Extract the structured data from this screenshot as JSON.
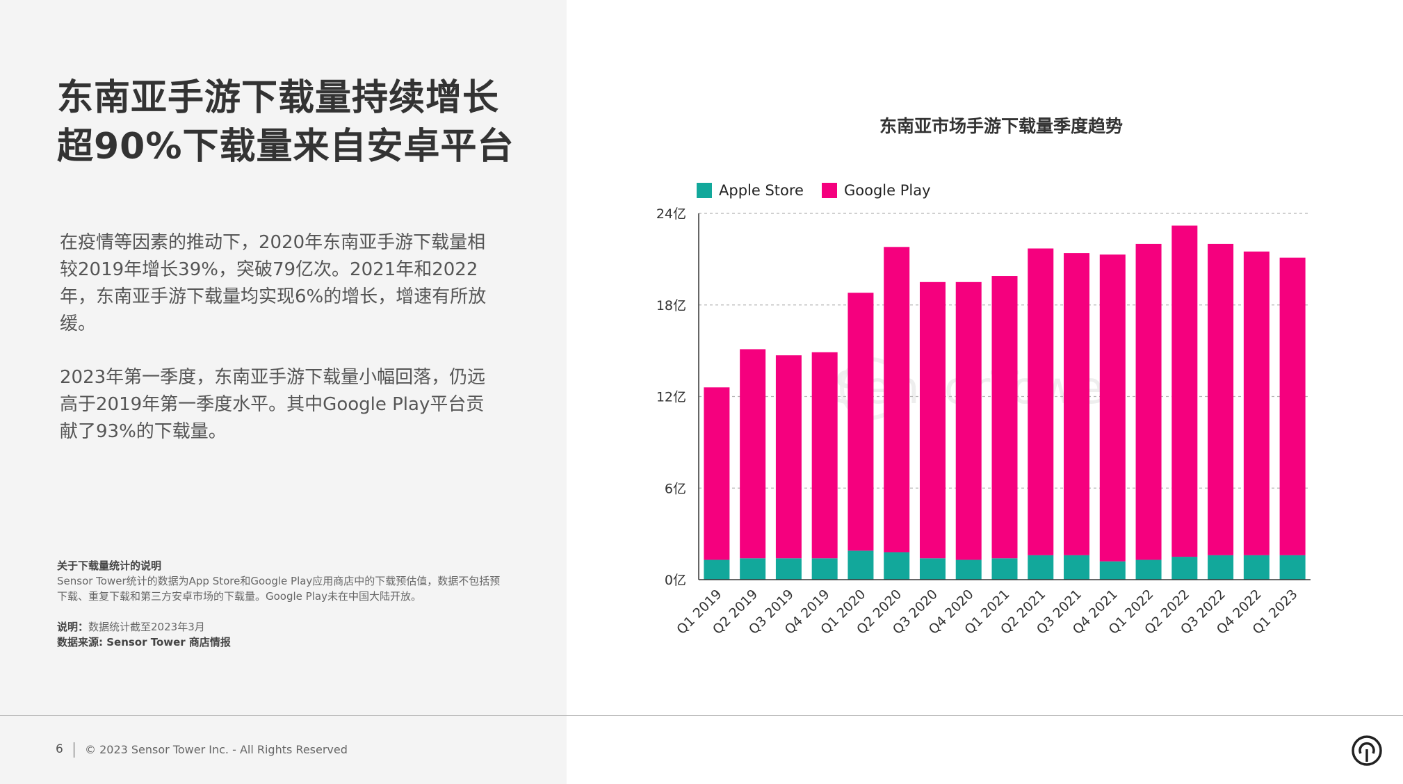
{
  "headline": {
    "line1": "东南亚手游下载量持续增长",
    "line2": "超90%下载量来自安卓平台"
  },
  "body": {
    "paragraph1": "在疫情等因素的推动下，2020年东南亚手游下载量相较2019年增长39%，突破79亿次。2021年和2022年，东南亚手游下载量均实现6%的增长，增速有所放缓。",
    "paragraph2": "2023年第一季度，东南亚手游下载量小幅回落，仍远高于2019年第一季度水平。其中Google Play平台贡献了93%的下载量。"
  },
  "notes": {
    "heading": "关于下载量统计的说明",
    "text": "Sensor Tower统计的数据为App Store和Google Play应用商店中的下载预估值，数据不包括预下载、重复下载和第三方安卓市场的下载量。Google Play未在中国大陆开放。",
    "stat_label": "说明：",
    "stat_text": "数据统计截至2023年3月",
    "source": "数据来源: Sensor Tower 商店情报"
  },
  "footer": {
    "page_number": "6",
    "copyright": "© 2023 Sensor Tower Inc. - All Rights Reserved"
  },
  "colors": {
    "apple": "#12a89b",
    "google": "#f5007e"
  },
  "chart_data": {
    "type": "bar",
    "stacked": true,
    "title": "东南亚市场手游下载量季度趋势",
    "xlabel": "",
    "ylabel": "",
    "ylim": [
      0,
      24
    ],
    "yticks": [
      0,
      6,
      12,
      18,
      24
    ],
    "ytick_labels": [
      "0亿",
      "6亿",
      "12亿",
      "18亿",
      "24亿"
    ],
    "legend_position": "top-left",
    "categories": [
      "Q1 2019",
      "Q2 2019",
      "Q3 2019",
      "Q4 2019",
      "Q1 2020",
      "Q2 2020",
      "Q3 2020",
      "Q4 2020",
      "Q1 2021",
      "Q2 2021",
      "Q3 2021",
      "Q4 2021",
      "Q1 2022",
      "Q2 2022",
      "Q3 2022",
      "Q4 2022",
      "Q1 2023"
    ],
    "series": [
      {
        "name": "Apple Store",
        "values": [
          1.3,
          1.4,
          1.4,
          1.4,
          1.9,
          1.8,
          1.4,
          1.3,
          1.4,
          1.6,
          1.6,
          1.2,
          1.3,
          1.5,
          1.6,
          1.6,
          1.6
        ]
      },
      {
        "name": "Google Play",
        "values": [
          11.3,
          13.7,
          13.3,
          13.5,
          16.9,
          20.0,
          18.1,
          18.2,
          18.5,
          20.1,
          19.8,
          20.1,
          20.7,
          21.7,
          20.4,
          19.9,
          19.5
        ]
      }
    ]
  },
  "watermark": "SensorTower"
}
